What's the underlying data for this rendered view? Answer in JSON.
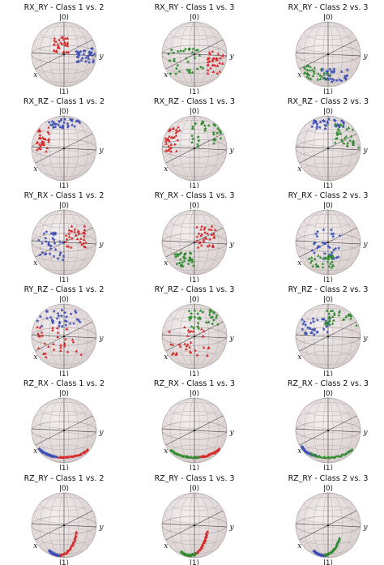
{
  "figure": {
    "colors": {
      "class_1": "#d62728",
      "class_2": "#3c4fb5",
      "class_3": "#2e8b2e"
    }
  },
  "chart_data": [
    {
      "type": "scatter",
      "title": "RX_RY - Class 1 vs. 2",
      "series": [
        {
          "class": 1,
          "marker": "triangle",
          "color": "#d62728"
        },
        {
          "class": 2,
          "marker": "star",
          "color": "#3c4fb5"
        }
      ],
      "labels": {
        "top": "|0⟩",
        "bottom": "|1⟩",
        "x": "x",
        "y": "y"
      },
      "pattern": {
        "a": {
          "t0": -0.35,
          "t1": 0.15,
          "u0": 0.05,
          "u1": 0.55
        },
        "b": {
          "t0": 0.35,
          "t1": 0.95,
          "u0": -0.25,
          "u1": 0.2
        }
      }
    },
    {
      "type": "scatter",
      "title": "RX_RY - Class 1 vs. 3",
      "series": [
        {
          "class": 1,
          "marker": "triangle",
          "color": "#d62728"
        },
        {
          "class": 3,
          "marker": "star",
          "color": "#2e8b2e"
        }
      ],
      "labels": {
        "top": "|0⟩",
        "bottom": "|1⟩",
        "x": "x",
        "y": "y"
      },
      "pattern": {
        "a": {
          "t0": 0.4,
          "t1": 0.9,
          "u0": -0.6,
          "u1": 0.1
        },
        "b": {
          "t0": -0.8,
          "t1": 0.3,
          "u0": -0.6,
          "u1": 0.2
        }
      }
    },
    {
      "type": "scatter",
      "title": "RX_RY - Class 2 vs. 3",
      "series": [
        {
          "class": 2,
          "marker": "star",
          "color": "#3c4fb5"
        },
        {
          "class": 3,
          "marker": "triangle",
          "color": "#2e8b2e"
        }
      ],
      "labels": {
        "top": "|0⟩",
        "bottom": "|1⟩",
        "x": "x",
        "y": "y"
      },
      "pattern": {
        "a": {
          "t0": -0.2,
          "t1": 0.6,
          "u0": -0.85,
          "u1": -0.45
        },
        "b": {
          "t0": -0.75,
          "t1": 0.1,
          "u0": -0.8,
          "u1": -0.35
        }
      }
    },
    {
      "type": "scatter",
      "title": "RX_RZ - Class 1 vs. 2",
      "series": [
        {
          "class": 1,
          "marker": "triangle",
          "color": "#d62728"
        },
        {
          "class": 2,
          "marker": "star",
          "color": "#3c4fb5"
        }
      ],
      "labels": {
        "top": "|0⟩",
        "bottom": "|1⟩",
        "x": "x",
        "y": "y"
      },
      "pattern": {
        "a": {
          "t0": -0.9,
          "t1": -0.45,
          "u0": -0.1,
          "u1": 0.65
        },
        "b": {
          "t0": -0.5,
          "t1": 0.5,
          "u0": 0.6,
          "u1": 0.9
        }
      }
    },
    {
      "type": "scatter",
      "title": "RX_RZ - Class 1 vs. 3",
      "series": [
        {
          "class": 1,
          "marker": "triangle",
          "color": "#d62728"
        },
        {
          "class": 3,
          "marker": "star",
          "color": "#2e8b2e"
        }
      ],
      "labels": {
        "top": "|0⟩",
        "bottom": "|1⟩",
        "x": "x",
        "y": "y"
      },
      "pattern": {
        "a": {
          "t0": -0.9,
          "t1": -0.45,
          "u0": -0.1,
          "u1": 0.65
        },
        "b": {
          "t0": -0.1,
          "t1": 0.85,
          "u0": 0.05,
          "u1": 0.85
        }
      }
    },
    {
      "type": "scatter",
      "title": "RX_RZ - Class 2 vs. 3",
      "series": [
        {
          "class": 2,
          "marker": "star",
          "color": "#3c4fb5"
        },
        {
          "class": 3,
          "marker": "triangle",
          "color": "#2e8b2e"
        }
      ],
      "labels": {
        "top": "|0⟩",
        "bottom": "|1⟩",
        "x": "x",
        "y": "y"
      },
      "pattern": {
        "a": {
          "t0": -0.5,
          "t1": 0.5,
          "u0": 0.6,
          "u1": 0.9
        },
        "b": {
          "t0": 0.2,
          "t1": 0.95,
          "u0": 0.0,
          "u1": 0.8
        }
      }
    },
    {
      "type": "scatter",
      "title": "RY_RX - Class 1 vs. 2",
      "series": [
        {
          "class": 1,
          "marker": "triangle",
          "color": "#d62728"
        },
        {
          "class": 2,
          "marker": "star",
          "color": "#3c4fb5"
        }
      ],
      "labels": {
        "top": "|0⟩",
        "bottom": "|1⟩",
        "x": "x",
        "y": "y"
      },
      "pattern": {
        "a": {
          "t0": 0.05,
          "t1": 0.7,
          "u0": -0.2,
          "u1": 0.5
        },
        "b": {
          "t0": -0.8,
          "t1": 0.0,
          "u0": -0.55,
          "u1": 0.35
        }
      }
    },
    {
      "type": "scatter",
      "title": "RY_RX - Class 1 vs. 3",
      "series": [
        {
          "class": 1,
          "marker": "triangle",
          "color": "#d62728"
        },
        {
          "class": 3,
          "marker": "star",
          "color": "#2e8b2e"
        }
      ],
      "labels": {
        "top": "|0⟩",
        "bottom": "|1⟩",
        "x": "x",
        "y": "y"
      },
      "pattern": {
        "a": {
          "t0": 0.05,
          "t1": 0.7,
          "u0": -0.2,
          "u1": 0.5
        },
        "b": {
          "t0": -0.6,
          "t1": 0.0,
          "u0": -0.75,
          "u1": -0.3
        }
      }
    },
    {
      "type": "scatter",
      "title": "RY_RX - Class 2 vs. 3",
      "series": [
        {
          "class": 2,
          "marker": "star",
          "color": "#3c4fb5"
        },
        {
          "class": 3,
          "marker": "triangle",
          "color": "#2e8b2e"
        }
      ],
      "labels": {
        "top": "|0⟩",
        "bottom": "|1⟩",
        "x": "x",
        "y": "y"
      },
      "pattern": {
        "a": {
          "t0": -0.55,
          "t1": 0.45,
          "u0": -0.55,
          "u1": 0.4
        },
        "b": {
          "t0": -0.65,
          "t1": 0.2,
          "u0": -0.8,
          "u1": -0.4
        }
      }
    },
    {
      "type": "scatter",
      "title": "RY_RZ - Class 1 vs. 2",
      "series": [
        {
          "class": 1,
          "marker": "triangle",
          "color": "#d62728"
        },
        {
          "class": 2,
          "marker": "star",
          "color": "#3c4fb5"
        }
      ],
      "labels": {
        "top": "|0⟩",
        "bottom": "|1⟩",
        "x": "x",
        "y": "y"
      },
      "pattern": {
        "a": {
          "t0": -0.85,
          "t1": 0.55,
          "u0": -0.65,
          "u1": 0.3
        },
        "b": {
          "t0": -0.85,
          "t1": 0.5,
          "u0": 0.3,
          "u1": 0.85
        }
      }
    },
    {
      "type": "scatter",
      "title": "RY_RZ - Class 1 vs. 3",
      "series": [
        {
          "class": 1,
          "marker": "triangle",
          "color": "#d62728"
        },
        {
          "class": 3,
          "marker": "star",
          "color": "#2e8b2e"
        }
      ],
      "labels": {
        "top": "|0⟩",
        "bottom": "|1⟩",
        "x": "x",
        "y": "y"
      },
      "pattern": {
        "a": {
          "t0": -0.8,
          "t1": 0.45,
          "u0": -0.6,
          "u1": 0.3
        },
        "b": {
          "t0": -0.2,
          "t1": 0.75,
          "u0": 0.2,
          "u1": 0.85
        }
      }
    },
    {
      "type": "scatter",
      "title": "RY_RZ - Class 2 vs. 3",
      "series": [
        {
          "class": 2,
          "marker": "star",
          "color": "#3c4fb5"
        },
        {
          "class": 3,
          "marker": "triangle",
          "color": "#2e8b2e"
        }
      ],
      "labels": {
        "top": "|0⟩",
        "bottom": "|1⟩",
        "x": "x",
        "y": "y"
      },
      "pattern": {
        "a": {
          "t0": -0.9,
          "t1": 0.1,
          "u0": 0.0,
          "u1": 0.55
        },
        "b": {
          "t0": -0.1,
          "t1": 0.9,
          "u0": 0.3,
          "u1": 0.8
        }
      }
    },
    {
      "type": "scatter",
      "title": "RZ_RX - Class 1 vs. 2",
      "series": [
        {
          "class": 1,
          "marker": "triangle",
          "color": "#d62728"
        },
        {
          "class": 2,
          "marker": "star",
          "color": "#3c4fb5"
        }
      ],
      "labels": {
        "top": "|0⟩",
        "bottom": "|1⟩",
        "x": "x",
        "y": "y"
      },
      "pattern": {
        "arc": true,
        "a": {
          "t0": -0.15,
          "t1": 0.7
        },
        "b": {
          "t0": -0.75,
          "t1": -0.2
        }
      }
    },
    {
      "type": "scatter",
      "title": "RZ_RX - Class 1 vs. 3",
      "series": [
        {
          "class": 1,
          "marker": "triangle",
          "color": "#d62728"
        },
        {
          "class": 3,
          "marker": "star",
          "color": "#2e8b2e"
        }
      ],
      "labels": {
        "top": "|0⟩",
        "bottom": "|1⟩",
        "x": "x",
        "y": "y"
      },
      "pattern": {
        "arc": true,
        "a": {
          "t0": 0.05,
          "t1": 0.75
        },
        "b": {
          "t0": -0.7,
          "t1": 0.1
        }
      }
    },
    {
      "type": "scatter",
      "title": "RZ_RX - Class 2 vs. 3",
      "series": [
        {
          "class": 2,
          "marker": "star",
          "color": "#3c4fb5"
        },
        {
          "class": 3,
          "marker": "triangle",
          "color": "#2e8b2e"
        }
      ],
      "labels": {
        "top": "|0⟩",
        "bottom": "|1⟩",
        "x": "x",
        "y": "y"
      },
      "pattern": {
        "arc": true,
        "a": {
          "t0": -0.85,
          "t1": -0.3
        },
        "b": {
          "t0": -0.45,
          "t1": 0.7
        }
      }
    },
    {
      "type": "scatter",
      "title": "RZ_RY - Class 1 vs. 2",
      "series": [
        {
          "class": 1,
          "marker": "triangle",
          "color": "#d62728"
        },
        {
          "class": 2,
          "marker": "star",
          "color": "#3c4fb5"
        }
      ],
      "labels": {
        "top": "|0⟩",
        "bottom": "|1⟩",
        "x": "x",
        "y": "y"
      },
      "pattern": {
        "steep": true,
        "a": {
          "t0": 0.0,
          "t1": 0.85
        },
        "b": {
          "t0": -0.35,
          "t1": 0.0
        }
      }
    },
    {
      "type": "scatter",
      "title": "RZ_RY - Class 1 vs. 3",
      "series": [
        {
          "class": 1,
          "marker": "triangle",
          "color": "#d62728"
        },
        {
          "class": 3,
          "marker": "star",
          "color": "#2e8b2e"
        }
      ],
      "labels": {
        "top": "|0⟩",
        "bottom": "|1⟩",
        "x": "x",
        "y": "y"
      },
      "pattern": {
        "steep": true,
        "a": {
          "t0": 0.15,
          "t1": 0.85
        },
        "b": {
          "t0": -0.3,
          "t1": 0.2
        }
      }
    },
    {
      "type": "scatter",
      "title": "RZ_RY - Class 2 vs. 3",
      "series": [
        {
          "class": 2,
          "marker": "star",
          "color": "#3c4fb5"
        },
        {
          "class": 3,
          "marker": "triangle",
          "color": "#2e8b2e"
        }
      ],
      "labels": {
        "top": "|0⟩",
        "bottom": "|1⟩",
        "x": "x",
        "y": "y"
      },
      "pattern": {
        "steep": true,
        "a": {
          "t0": -0.35,
          "t1": 0.1
        },
        "b": {
          "t0": 0.05,
          "t1": 0.7
        }
      }
    }
  ]
}
